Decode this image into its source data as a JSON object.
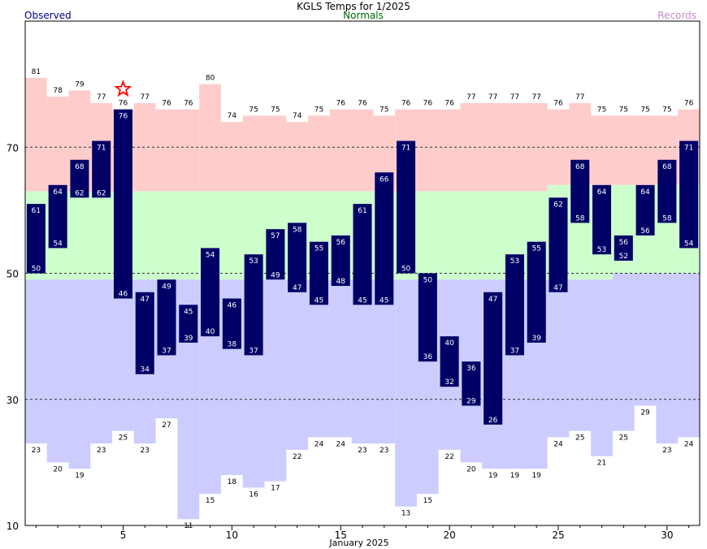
{
  "header": {
    "title": "KGLS Temps for 1/2025",
    "observed_label": "Observed",
    "normals_label": "Normals",
    "records_label": "Records"
  },
  "colors": {
    "record_high": "#ffcccc",
    "normal_band": "#ccffcc",
    "record_low": "#ccccff",
    "observed_bar": "#000066",
    "observed_text": "#000080",
    "normals_text": "#006600",
    "records_text": "#cc88cc",
    "star": "#ff0000",
    "gridline": "#333333"
  },
  "chart_data": {
    "type": "bar",
    "xlabel": "January 2025",
    "xlim": [
      0.5,
      31.5
    ],
    "ylim": [
      10,
      90
    ],
    "x_ticks": [
      5,
      10,
      15,
      20,
      25,
      30
    ],
    "y_ticks": [
      10,
      30,
      50,
      70
    ],
    "gridlines": [
      30,
      50,
      70
    ],
    "days": [
      1,
      2,
      3,
      4,
      5,
      6,
      7,
      8,
      9,
      10,
      11,
      12,
      13,
      14,
      15,
      16,
      17,
      18,
      19,
      20,
      21,
      22,
      23,
      24,
      25,
      26,
      27,
      28,
      29,
      30,
      31
    ],
    "series": [
      {
        "name": "Observed",
        "high": [
          61,
          64,
          68,
          71,
          76,
          47,
          49,
          45,
          54,
          46,
          53,
          57,
          58,
          55,
          56,
          61,
          66,
          71,
          50,
          40,
          36,
          47,
          53,
          55,
          62,
          68,
          64,
          56,
          64,
          68,
          71
        ],
        "low": [
          50,
          54,
          62,
          62,
          46,
          34,
          37,
          39,
          40,
          38,
          37,
          49,
          47,
          45,
          48,
          45,
          45,
          50,
          36,
          32,
          29,
          26,
          37,
          39,
          47,
          58,
          53,
          52,
          56,
          58,
          54
        ]
      },
      {
        "name": "Records",
        "high": [
          81,
          78,
          79,
          77,
          76,
          77,
          76,
          76,
          80,
          74,
          75,
          75,
          74,
          75,
          76,
          76,
          75,
          76,
          76,
          76,
          77,
          77,
          77,
          77,
          76,
          77,
          75,
          75,
          75,
          75,
          76
        ],
        "low": [
          23,
          20,
          19,
          23,
          25,
          23,
          27,
          11,
          15,
          18,
          16,
          17,
          22,
          24,
          24,
          23,
          23,
          13,
          15,
          22,
          20,
          19,
          19,
          19,
          24,
          25,
          21,
          25,
          29,
          23,
          24
        ]
      },
      {
        "name": "Normals",
        "high": [
          63,
          63,
          63,
          63,
          63,
          63,
          63,
          63,
          63,
          63,
          63,
          63,
          63,
          63,
          63,
          63,
          63,
          63,
          63,
          63,
          63,
          63,
          63,
          63,
          64,
          64,
          64,
          64,
          64,
          64,
          64
        ],
        "low": [
          49,
          49,
          49,
          49,
          49,
          49,
          49,
          49,
          49,
          49,
          49,
          49,
          49,
          49,
          49,
          49,
          49,
          49,
          49,
          49,
          49,
          49,
          49,
          49,
          49,
          49,
          49,
          50,
          50,
          50,
          50
        ]
      }
    ],
    "record_set_days": [
      5
    ]
  }
}
